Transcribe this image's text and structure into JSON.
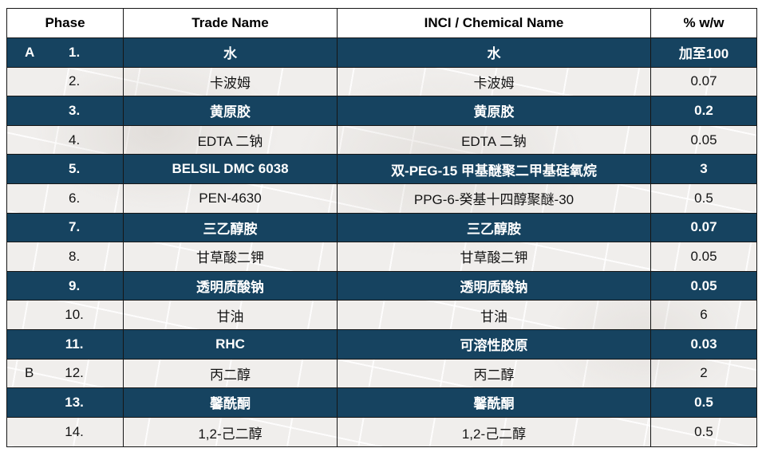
{
  "table": {
    "columns": [
      "Phase",
      "Trade Name",
      "INCI / Chemical Name",
      "% w/w"
    ],
    "rows": [
      {
        "phase": "A",
        "num": "1.",
        "trade": "水",
        "inci": "水",
        "pct": "加至100",
        "dark": true
      },
      {
        "phase": "",
        "num": "2.",
        "trade": "卡波姆",
        "inci": "卡波姆",
        "pct": "0.07",
        "dark": false
      },
      {
        "phase": "",
        "num": "3.",
        "trade": "黄原胶",
        "inci": "黄原胶",
        "pct": "0.2",
        "dark": true
      },
      {
        "phase": "",
        "num": "4.",
        "trade": "EDTA 二钠",
        "inci": "EDTA 二钠",
        "pct": "0.05",
        "dark": false
      },
      {
        "phase": "",
        "num": "5.",
        "trade": "BELSIL DMC 6038",
        "inci": "双-PEG-15 甲基醚聚二甲基硅氧烷",
        "pct": "3",
        "dark": true
      },
      {
        "phase": "",
        "num": "6.",
        "trade": "PEN-4630",
        "inci": "PPG-6-癸基十四醇聚醚-30",
        "pct": "0.5",
        "dark": false
      },
      {
        "phase": "",
        "num": "7.",
        "trade": "三乙醇胺",
        "inci": "三乙醇胺",
        "pct": "0.07",
        "dark": true
      },
      {
        "phase": "",
        "num": "8.",
        "trade": "甘草酸二钾",
        "inci": "甘草酸二钾",
        "pct": "0.05",
        "dark": false
      },
      {
        "phase": "",
        "num": "9.",
        "trade": "透明质酸钠",
        "inci": "透明质酸钠",
        "pct": "0.05",
        "dark": true
      },
      {
        "phase": "",
        "num": "10.",
        "trade": "甘油",
        "inci": "甘油",
        "pct": "6",
        "dark": false
      },
      {
        "phase": "",
        "num": "11.",
        "trade": "RHC",
        "inci": "可溶性胶原",
        "pct": "0.03",
        "dark": true
      },
      {
        "phase": "B",
        "num": "12.",
        "trade": "丙二醇",
        "inci": "丙二醇",
        "pct": "2",
        "dark": false
      },
      {
        "phase": "",
        "num": "13.",
        "trade": "馨酰酮",
        "inci": "馨酰酮",
        "pct": "0.5",
        "dark": true
      },
      {
        "phase": "",
        "num": "14.",
        "trade": "1,2-己二醇",
        "inci": "1,2-己二醇",
        "pct": "0.5",
        "dark": false
      }
    ]
  },
  "colors": {
    "dark_row_bg": "#164360",
    "dark_row_text": "#ffffff",
    "light_row_bg": "#f0eeec",
    "light_row_text": "#141414",
    "border": "#161616",
    "header_bg": "#ffffff"
  }
}
